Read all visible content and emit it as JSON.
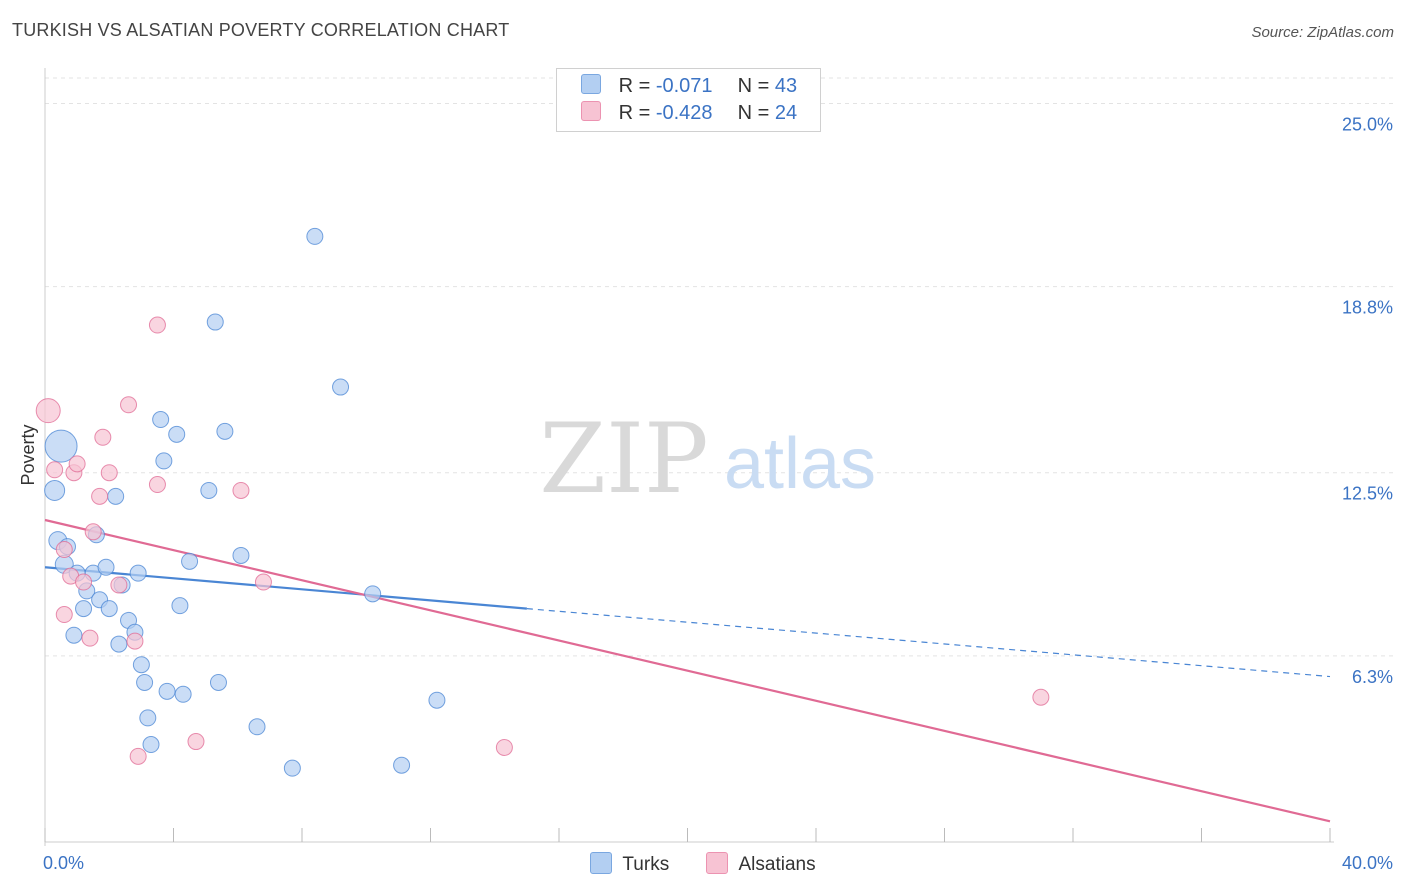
{
  "header": {
    "title": "TURKISH VS ALSATIAN POVERTY CORRELATION CHART",
    "source": "Source: ZipAtlas.com"
  },
  "legend": {
    "turks": {
      "r_label": "R =",
      "r_value": "-0.071",
      "n_label": "N =",
      "n_value": "43",
      "color": "#a9c9f0"
    },
    "alsatians": {
      "r_label": "R =",
      "r_value": "-0.428",
      "n_label": "N =",
      "n_value": "24",
      "color": "#f5b8cb"
    }
  },
  "watermark": {
    "zip": "ZIP",
    "atlas": "atlas"
  },
  "chart_data": {
    "type": "scatter",
    "title": "TURKISH VS ALSATIAN POVERTY CORRELATION CHART",
    "xlabel": "",
    "ylabel": "Poverty",
    "xlim": [
      0,
      40
    ],
    "ylim": [
      0,
      26.2
    ],
    "x_tick_labels": {
      "min": "0.0%",
      "max": "40.0%"
    },
    "y_ticks": [
      {
        "value": 6.3,
        "label": "6.3%"
      },
      {
        "value": 12.5,
        "label": "12.5%"
      },
      {
        "value": 18.8,
        "label": "18.8%"
      },
      {
        "value": 25.0,
        "label": "25.0%"
      }
    ],
    "series": [
      {
        "name": "Turks",
        "color": "#4a86d4",
        "fill": "#b3cff2",
        "points": [
          [
            0.5,
            13.4,
            16
          ],
          [
            0.3,
            11.9,
            10
          ],
          [
            0.4,
            10.2,
            9
          ],
          [
            0.7,
            10.0,
            8
          ],
          [
            0.6,
            9.4,
            9
          ],
          [
            1.0,
            9.1,
            8
          ],
          [
            1.5,
            9.1,
            8
          ],
          [
            1.9,
            9.3,
            8
          ],
          [
            2.9,
            9.1,
            8
          ],
          [
            1.6,
            10.4,
            8
          ],
          [
            1.3,
            8.5,
            8
          ],
          [
            1.7,
            8.2,
            8
          ],
          [
            2.4,
            8.7,
            8
          ],
          [
            1.2,
            7.9,
            8
          ],
          [
            2.0,
            7.9,
            8
          ],
          [
            2.6,
            7.5,
            8
          ],
          [
            2.8,
            7.1,
            8
          ],
          [
            0.9,
            7.0,
            8
          ],
          [
            2.3,
            6.7,
            8
          ],
          [
            3.6,
            14.3,
            8
          ],
          [
            4.1,
            13.8,
            8
          ],
          [
            3.7,
            12.9,
            8
          ],
          [
            2.2,
            11.7,
            8
          ],
          [
            5.1,
            11.9,
            8
          ],
          [
            4.5,
            9.5,
            8
          ],
          [
            6.1,
            9.7,
            8
          ],
          [
            4.2,
            8.0,
            8
          ],
          [
            5.3,
            17.6,
            8
          ],
          [
            5.6,
            13.9,
            8
          ],
          [
            8.4,
            20.5,
            8
          ],
          [
            9.2,
            15.4,
            8
          ],
          [
            10.2,
            8.4,
            8
          ],
          [
            3.1,
            5.4,
            8
          ],
          [
            3.8,
            5.1,
            8
          ],
          [
            4.3,
            5.0,
            8
          ],
          [
            5.4,
            5.4,
            8
          ],
          [
            3.0,
            6.0,
            8
          ],
          [
            3.2,
            4.2,
            8
          ],
          [
            3.3,
            3.3,
            8
          ],
          [
            6.6,
            3.9,
            8
          ],
          [
            7.7,
            2.5,
            8
          ],
          [
            11.1,
            2.6,
            8
          ],
          [
            12.2,
            4.8,
            8
          ]
        ]
      },
      {
        "name": "Alsatians",
        "color": "#e06a94",
        "fill": "#f7c3d3",
        "points": [
          [
            0.1,
            14.6,
            12
          ],
          [
            0.3,
            12.6,
            8
          ],
          [
            0.6,
            9.9,
            8
          ],
          [
            0.9,
            12.5,
            8
          ],
          [
            1.0,
            12.8,
            8
          ],
          [
            0.8,
            9.0,
            8
          ],
          [
            1.2,
            8.8,
            8
          ],
          [
            1.8,
            13.7,
            8
          ],
          [
            2.0,
            12.5,
            8
          ],
          [
            1.7,
            11.7,
            8
          ],
          [
            1.5,
            10.5,
            8
          ],
          [
            2.3,
            8.7,
            8
          ],
          [
            2.6,
            14.8,
            8
          ],
          [
            3.5,
            12.1,
            8
          ],
          [
            3.5,
            17.5,
            8
          ],
          [
            0.6,
            7.7,
            8
          ],
          [
            1.4,
            6.9,
            8
          ],
          [
            2.8,
            6.8,
            8
          ],
          [
            6.1,
            11.9,
            8
          ],
          [
            6.8,
            8.8,
            8
          ],
          [
            2.9,
            2.9,
            8
          ],
          [
            4.7,
            3.4,
            8
          ],
          [
            14.3,
            3.2,
            8
          ],
          [
            31.0,
            4.9,
            8
          ]
        ]
      }
    ],
    "trend_lines": [
      {
        "series": "Turks",
        "solid": [
          [
            0.0,
            9.3
          ],
          [
            15.0,
            7.9
          ]
        ],
        "dashed": [
          [
            15.0,
            7.9
          ],
          [
            40.0,
            5.6
          ]
        ]
      },
      {
        "series": "Alsatians",
        "solid": [
          [
            0.0,
            10.9
          ],
          [
            40.0,
            0.7
          ]
        ]
      }
    ]
  }
}
